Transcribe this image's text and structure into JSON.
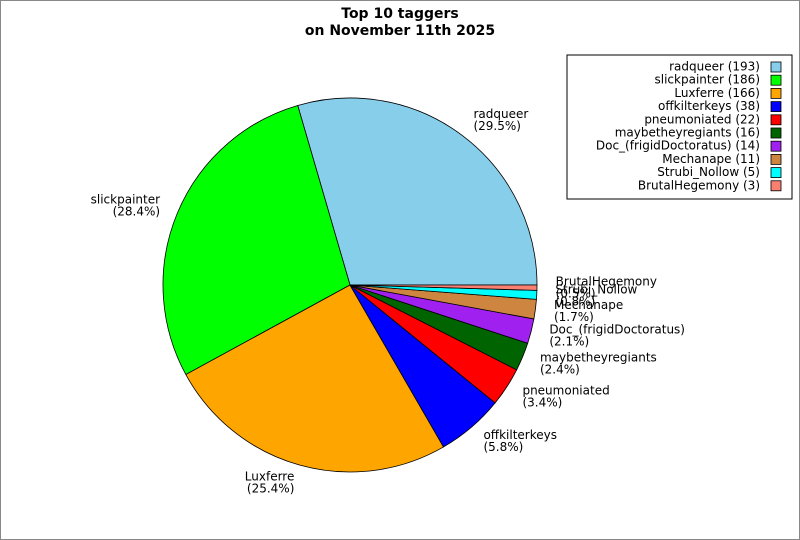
{
  "chart_data": {
    "type": "pie",
    "title": "Top 10 taggers",
    "subtitle": "on November 11th 2025",
    "categories": [
      "radqueer",
      "slickpainter",
      "Luxferre",
      "offkilterkeys",
      "pneumoniated",
      "maybetheyregiants",
      "Doc_(frigidDoctoratus)",
      "Mechanape",
      "Strubi_Nollow",
      "BrutalHegemony"
    ],
    "values": [
      193,
      186,
      166,
      38,
      22,
      16,
      14,
      11,
      5,
      3
    ],
    "percent_labels": [
      "(29.5%)",
      "(28.4%)",
      "(25.4%)",
      "(5.8%)",
      "(3.4%)",
      "(2.4%)",
      "(2.1%)",
      "(1.7%)",
      "(0.8%)",
      "(0.5%)"
    ],
    "legend_labels": [
      "radqueer (193)",
      "slickpainter (186)",
      "Luxferre (166)",
      "offkilterkeys (38)",
      "pneumoniated (22)",
      "maybetheyregiants (16)",
      "Doc_(frigidDoctoratus) (14)",
      "Mechanape (11)",
      "Strubi_Nollow (5)",
      "BrutalHegemony (3)"
    ],
    "colors": [
      "#87ceeb",
      "#00ff00",
      "#ffa500",
      "#0000ff",
      "#ff0000",
      "#006400",
      "#a020f0",
      "#cd853f",
      "#00ffff",
      "#fa8072"
    ],
    "legend": "upper right"
  }
}
